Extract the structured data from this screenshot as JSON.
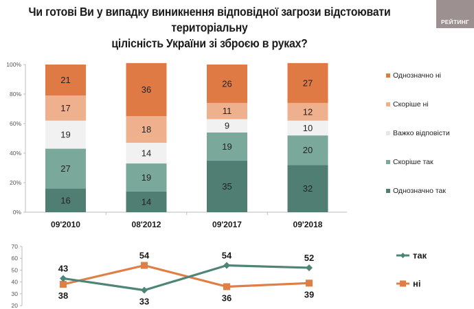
{
  "title_line1": "Чи готові Ви у випадку виникнення відповідної загрози відстоювати територіальну",
  "title_line2": "цілісність України зі зброєю в руках?",
  "logo_text": "РЕЙТИНГ",
  "colors": {
    "definitely_no": "#e07a44",
    "rather_no": "#efb08e",
    "hard_to_say": "#f1f1f1",
    "rather_yes": "#7aa89a",
    "definitely_yes": "#517e72",
    "line_yes": "#4e8576",
    "line_no": "#e07f45",
    "logo_bg": "#9c9090"
  },
  "chart_data": [
    {
      "type": "bar",
      "stacked": true,
      "title": "Чи готові Ви у випадку виникнення відповідної загрози відстоювати територіальну цілісність України зі зброєю в руках?",
      "categories": [
        "09'2010",
        "08'2012",
        "09'2017",
        "09'2018"
      ],
      "ylim": [
        0,
        100
      ],
      "yticks": [
        "0%",
        "20%",
        "40%",
        "60%",
        "80%",
        "100%"
      ],
      "legend_position": "right",
      "series": [
        {
          "name": "Однозначно так",
          "key": "definitely_yes",
          "values": [
            16,
            14,
            35,
            32
          ]
        },
        {
          "name": "Скоріше так",
          "key": "rather_yes",
          "values": [
            27,
            19,
            19,
            20
          ]
        },
        {
          "name": "Важко відповісти",
          "key": "hard_to_say",
          "values": [
            19,
            14,
            9,
            10
          ]
        },
        {
          "name": "Скоріше ні",
          "key": "rather_no",
          "values": [
            17,
            18,
            11,
            12
          ]
        },
        {
          "name": "Однозначно ні",
          "key": "definitely_no",
          "values": [
            21,
            36,
            26,
            27
          ]
        }
      ],
      "legend_order": [
        "Однозначно ні",
        "Скоріше ні",
        "Важко відповісти",
        "Скоріше так",
        "Однозначно так"
      ]
    },
    {
      "type": "line",
      "categories": [
        "09'2010",
        "08'2012",
        "09'2017",
        "09'2018"
      ],
      "ylim": [
        20,
        70
      ],
      "yticks": [
        "20",
        "30",
        "40",
        "50",
        "60",
        "70"
      ],
      "legend_position": "right",
      "series": [
        {
          "name": "так",
          "key": "line_yes",
          "marker": "diamond",
          "values": [
            43,
            33,
            54,
            52
          ]
        },
        {
          "name": "ні",
          "key": "line_no",
          "marker": "square",
          "values": [
            38,
            54,
            36,
            39
          ]
        }
      ]
    }
  ]
}
